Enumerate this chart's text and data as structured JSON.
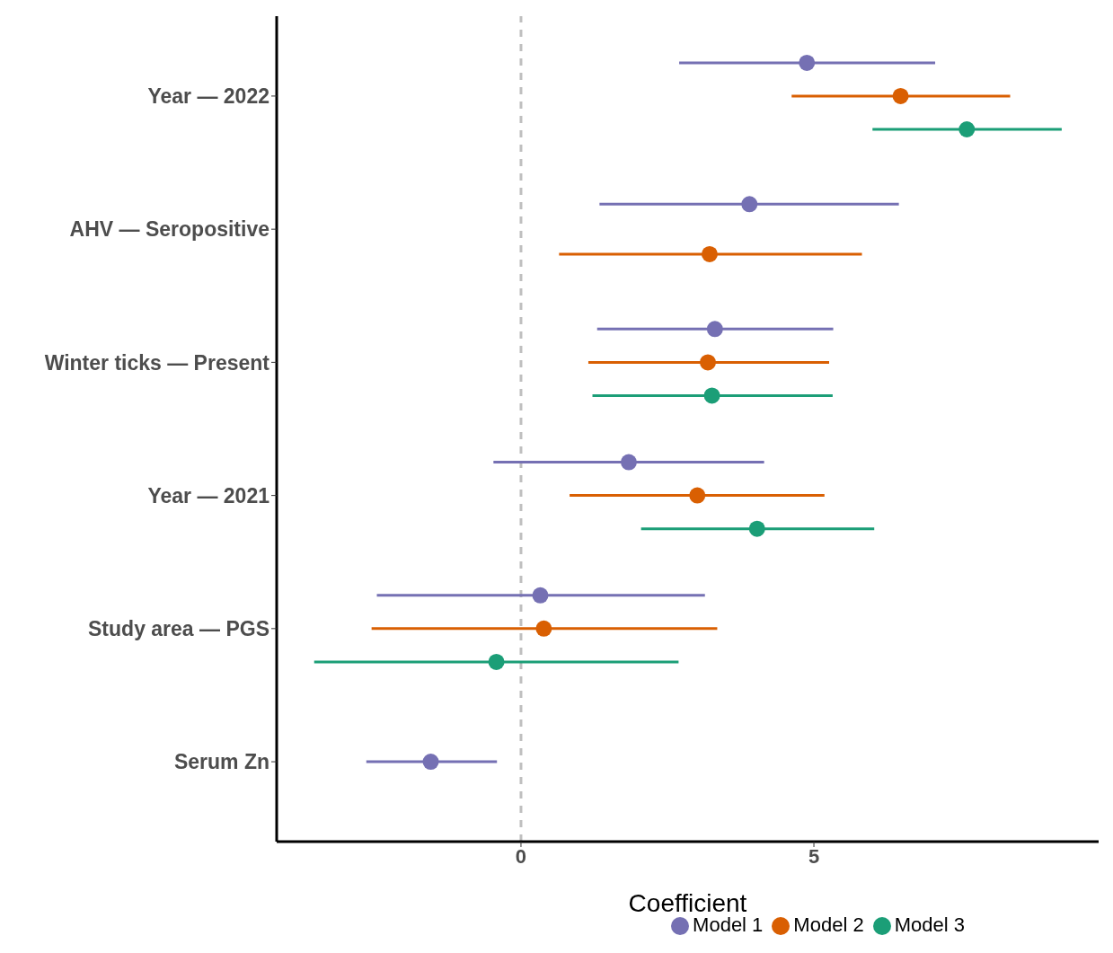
{
  "chart_data": {
    "type": "scatter",
    "orientation": "horizontal",
    "xlabel": "Coefficient",
    "categories": [
      "Year — 2022",
      "AHV — Seropositive",
      "Winter ticks — Present",
      "Year — 2021",
      "Study area — PGS",
      "Serum Zn"
    ],
    "series": [
      {
        "name": "Model 1",
        "color": "#7570b3",
        "values": [
          4.88,
          3.9,
          3.31,
          1.84,
          0.33,
          -1.54
        ],
        "errors": [
          [
            2.7,
            7.07
          ],
          [
            1.34,
            6.45
          ],
          [
            1.3,
            5.33
          ],
          [
            -0.47,
            4.15
          ],
          [
            -2.46,
            3.14
          ],
          [
            -2.64,
            -0.41
          ]
        ]
      },
      {
        "name": "Model 2",
        "color": "#d95f02",
        "values": [
          6.48,
          3.22,
          3.19,
          3.01,
          0.39,
          null
        ],
        "errors": [
          [
            4.62,
            8.35
          ],
          [
            0.65,
            5.82
          ],
          [
            1.15,
            5.26
          ],
          [
            0.83,
            5.18
          ],
          [
            -2.55,
            3.35
          ],
          null
        ]
      },
      {
        "name": "Model 3",
        "color": "#1b9e77",
        "values": [
          7.61,
          null,
          3.26,
          4.03,
          -0.42,
          null
        ],
        "errors": [
          [
            6.0,
            9.23
          ],
          null,
          [
            1.22,
            5.32
          ],
          [
            2.05,
            6.03
          ],
          [
            -3.53,
            2.69
          ],
          null
        ]
      }
    ],
    "xlim": [
      -4.17,
      9.86
    ],
    "xticks": [
      0,
      5
    ],
    "marker": "circle",
    "legend": "bottom",
    "ref_lines": [
      {
        "axis": "x",
        "value": 0,
        "color": "#bfbfbf",
        "line_style": "dashed"
      }
    ]
  }
}
